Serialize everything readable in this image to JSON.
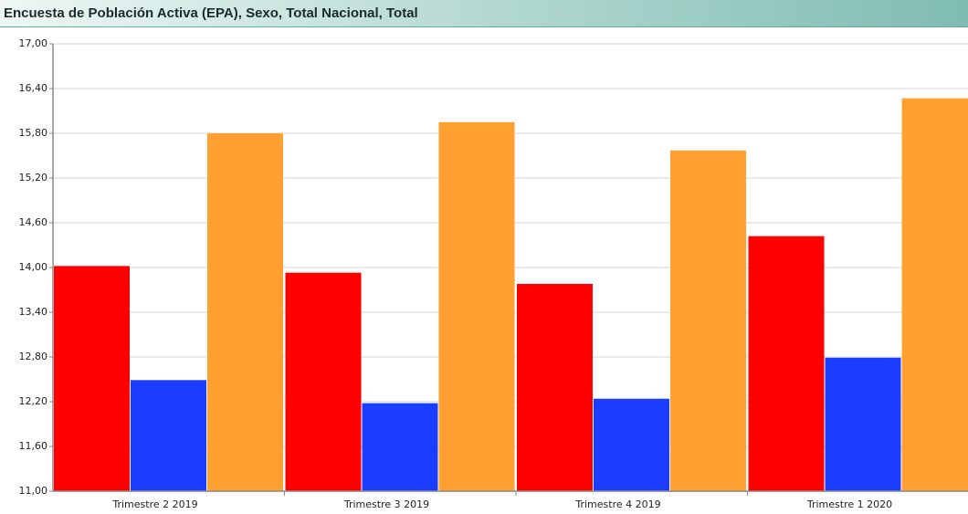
{
  "chart_data": {
    "type": "bar",
    "title": "Encuesta de Población Activa (EPA), Sexo, Total Nacional, Total",
    "categories": [
      "Trimestre 2 2019",
      "Trimestre 3 2019",
      "Trimestre 4 2019",
      "Trimestre 1 2020"
    ],
    "series": [
      {
        "color": "#ff0000",
        "values": [
          14.02,
          13.93,
          13.78,
          14.42
        ]
      },
      {
        "color": "#1a3dff",
        "values": [
          12.49,
          12.18,
          12.24,
          12.79
        ]
      },
      {
        "color": "#ffa030",
        "values": [
          15.8,
          15.95,
          15.57,
          16.27
        ]
      }
    ],
    "ylim": [
      11,
      17
    ],
    "yticks": [
      {
        "value": 11,
        "label": "11,00"
      },
      {
        "value": 11.6,
        "label": "11,60"
      },
      {
        "value": 12.2,
        "label": "12,20"
      },
      {
        "value": 12.8,
        "label": "12,80"
      },
      {
        "value": 13.4,
        "label": "13,40"
      },
      {
        "value": 14,
        "label": "14,00"
      },
      {
        "value": 14.6,
        "label": "14,60"
      },
      {
        "value": 15.2,
        "label": "15,20"
      },
      {
        "value": 15.8,
        "label": "15,80"
      },
      {
        "value": 16.4,
        "label": "16,40"
      },
      {
        "value": 17,
        "label": "17,00"
      }
    ],
    "grid": true
  }
}
